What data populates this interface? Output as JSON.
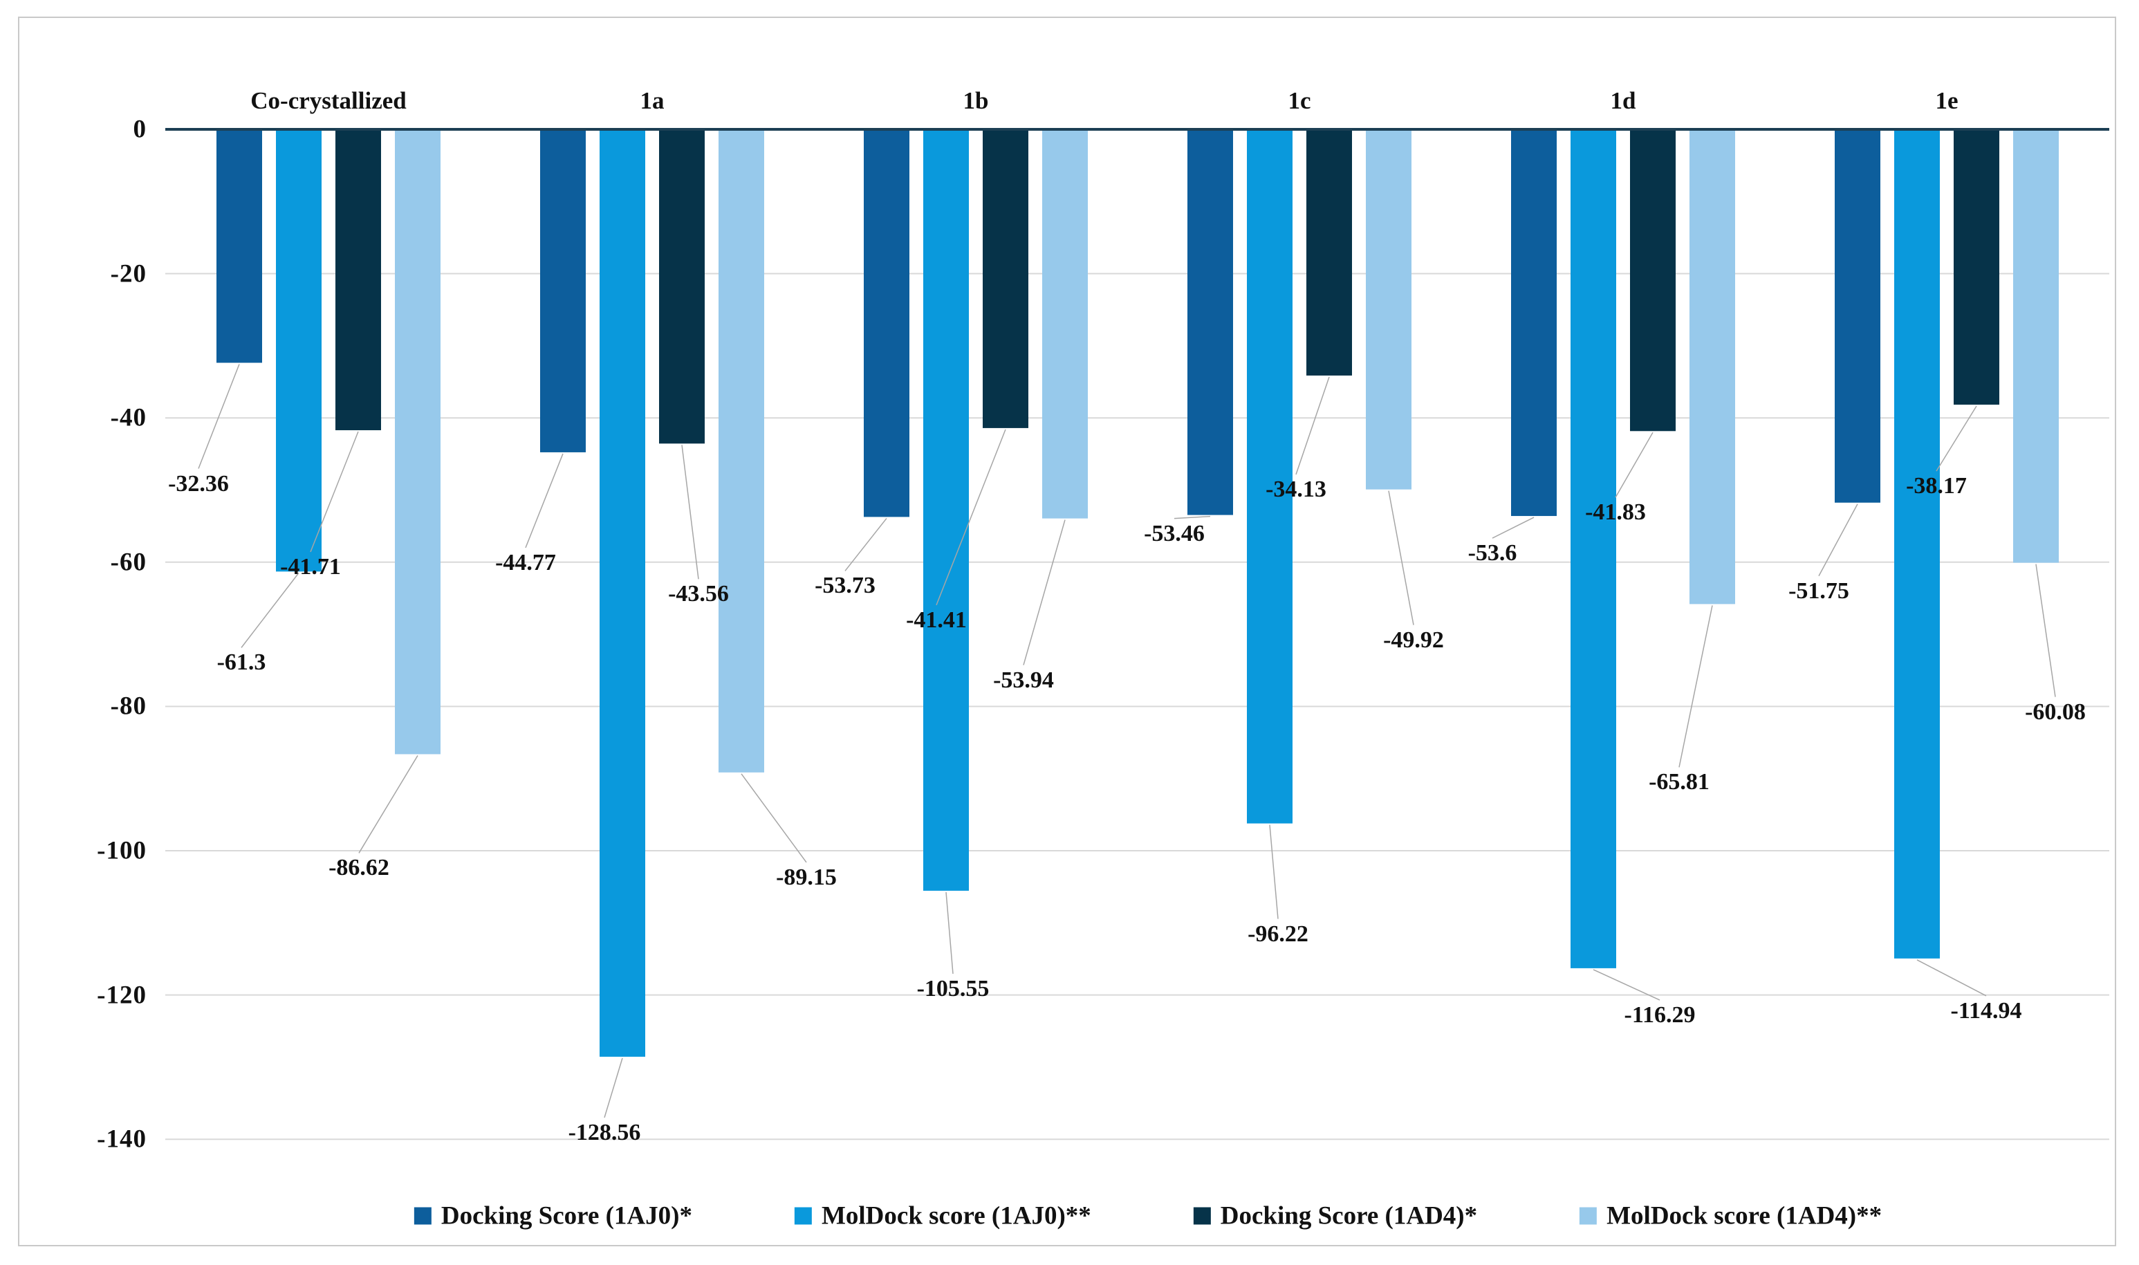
{
  "chart_data": {
    "type": "bar",
    "orientation": "vertical-negative",
    "title": "",
    "categories": [
      "Co-crystallized",
      "1a",
      "1b",
      "1c",
      "1d",
      "1e"
    ],
    "series": [
      {
        "name": "Docking Score (1AJ0)*",
        "color": "#0D5E9C",
        "values": [
          -32.36,
          -44.77,
          -53.73,
          -53.46,
          -53.6,
          -51.75
        ]
      },
      {
        "name": "MolDock score (1AJ0)**",
        "color": "#0A99DC",
        "values": [
          -61.3,
          -128.56,
          -105.55,
          -96.22,
          -116.29,
          -114.94
        ]
      },
      {
        "name": "Docking Score (1AD4)*",
        "color": "#063349",
        "values": [
          -41.71,
          -43.56,
          -41.41,
          -34.13,
          -41.83,
          -38.17
        ]
      },
      {
        "name": "MolDock score (1AD4)**",
        "color": "#97C9EB",
        "values": [
          -86.62,
          -89.15,
          -53.94,
          -49.92,
          -65.81,
          -60.08
        ]
      }
    ],
    "data_labels": [
      [
        "-32.36",
        "-44.77",
        "-53.73",
        "-53.46",
        "-53.6",
        "-51.75"
      ],
      [
        "-61.3",
        "-128.56",
        "-105.55",
        "-96.22",
        "-116.29",
        "-114.94"
      ],
      [
        "-41.71",
        "-43.56",
        "-41.41",
        "-34.13",
        "-41.83",
        "-38.17"
      ],
      [
        "-86.62",
        "-89.15",
        "-53.94",
        "-49.92",
        "-65.81",
        "-60.08"
      ]
    ],
    "y_axis": {
      "tick_labels": [
        "0",
        "-20",
        "-40",
        "-60",
        "-80",
        "-100",
        "-120",
        "-140"
      ],
      "ticks": [
        0,
        -20,
        -40,
        -60,
        -80,
        -100,
        -120,
        -140
      ],
      "min": -140,
      "max": 0
    },
    "grid": true,
    "legend_position": "bottom",
    "colors": {
      "zero_axis_line": "#1C3F54",
      "gridline": "#D9D9D9",
      "leader_line": "#A6A6A6",
      "frame_border": "#C9C9C9",
      "label_text": "#111111",
      "background": "#FFFFFF"
    }
  }
}
